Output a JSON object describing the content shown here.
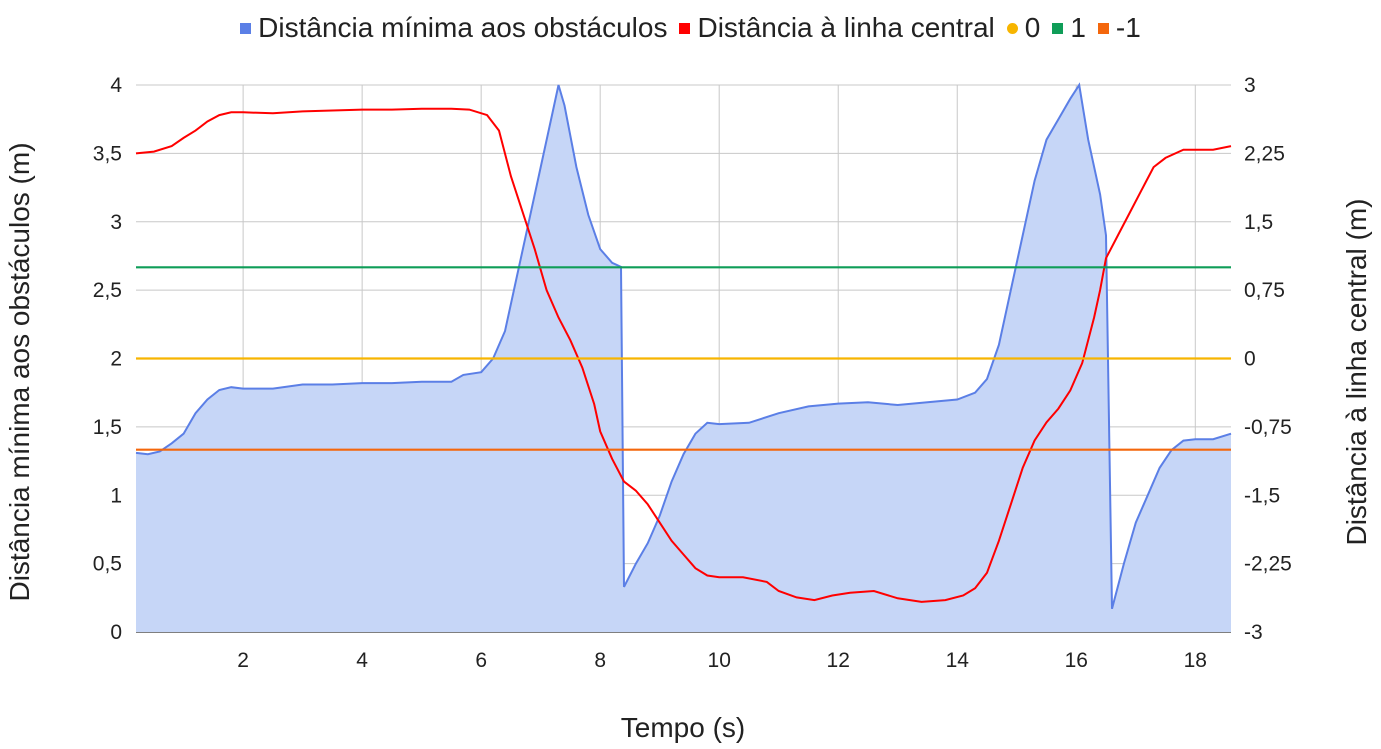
{
  "chart_data": {
    "type": "line",
    "xlabel": "Tempo (s)",
    "ylabel_left": "Distância mínima aos obstáculos (m)",
    "ylabel_right": "Distância à linha central (m)",
    "xlim": [
      0.2,
      18.6
    ],
    "ylim_left": [
      0,
      4
    ],
    "ylim_right": [
      -3,
      3
    ],
    "x_ticks": [
      "2",
      "4",
      "6",
      "8",
      "10",
      "12",
      "14",
      "16",
      "18"
    ],
    "x_tick_values": [
      2,
      4,
      6,
      8,
      10,
      12,
      14,
      16,
      18
    ],
    "y_left_ticks": [
      "0",
      "0,5",
      "1",
      "1,5",
      "2",
      "2,5",
      "3",
      "3,5",
      "4"
    ],
    "y_left_tick_values": [
      0,
      0.5,
      1,
      1.5,
      2,
      2.5,
      3,
      3.5,
      4
    ],
    "y_right_ticks": [
      "-3",
      "-2,25",
      "-1,5",
      "-0,75",
      "0",
      "0,75",
      "1,5",
      "2,25",
      "3"
    ],
    "y_right_tick_values": [
      -3,
      -2.25,
      -1.5,
      -0.75,
      0,
      0.75,
      1.5,
      2.25,
      3
    ],
    "grid": true,
    "legend_position": "top",
    "series": [
      {
        "name": "Distância mínima aos obstáculos",
        "axis": "left",
        "kind": "area",
        "color": "#5b7fe6",
        "fill": "#c6d6f7",
        "points": [
          [
            0.2,
            1.31
          ],
          [
            0.4,
            1.3
          ],
          [
            0.6,
            1.32
          ],
          [
            0.8,
            1.38
          ],
          [
            1.0,
            1.45
          ],
          [
            1.2,
            1.6
          ],
          [
            1.4,
            1.7
          ],
          [
            1.6,
            1.77
          ],
          [
            1.8,
            1.79
          ],
          [
            2.0,
            1.78
          ],
          [
            2.5,
            1.78
          ],
          [
            3.0,
            1.81
          ],
          [
            3.5,
            1.81
          ],
          [
            4.0,
            1.82
          ],
          [
            4.5,
            1.82
          ],
          [
            5.0,
            1.83
          ],
          [
            5.5,
            1.83
          ],
          [
            5.7,
            1.88
          ],
          [
            6.0,
            1.9
          ],
          [
            6.2,
            2.0
          ],
          [
            6.4,
            2.2
          ],
          [
            6.6,
            2.6
          ],
          [
            6.8,
            3.0
          ],
          [
            7.0,
            3.4
          ],
          [
            7.2,
            3.8
          ],
          [
            7.3,
            4.0
          ],
          [
            7.4,
            3.85
          ],
          [
            7.6,
            3.4
          ],
          [
            7.8,
            3.05
          ],
          [
            8.0,
            2.8
          ],
          [
            8.2,
            2.7
          ],
          [
            8.35,
            2.67
          ],
          [
            8.4,
            0.33
          ],
          [
            8.6,
            0.5
          ],
          [
            8.8,
            0.65
          ],
          [
            9.0,
            0.85
          ],
          [
            9.2,
            1.1
          ],
          [
            9.4,
            1.3
          ],
          [
            9.6,
            1.45
          ],
          [
            9.8,
            1.53
          ],
          [
            10.0,
            1.52
          ],
          [
            10.5,
            1.53
          ],
          [
            11.0,
            1.6
          ],
          [
            11.5,
            1.65
          ],
          [
            12.0,
            1.67
          ],
          [
            12.5,
            1.68
          ],
          [
            13.0,
            1.66
          ],
          [
            13.5,
            1.68
          ],
          [
            14.0,
            1.7
          ],
          [
            14.3,
            1.75
          ],
          [
            14.5,
            1.85
          ],
          [
            14.7,
            2.1
          ],
          [
            14.9,
            2.5
          ],
          [
            15.1,
            2.9
          ],
          [
            15.3,
            3.3
          ],
          [
            15.5,
            3.6
          ],
          [
            15.7,
            3.75
          ],
          [
            15.9,
            3.9
          ],
          [
            16.05,
            4.0
          ],
          [
            16.2,
            3.6
          ],
          [
            16.4,
            3.2
          ],
          [
            16.5,
            2.9
          ],
          [
            16.6,
            0.17
          ],
          [
            16.8,
            0.5
          ],
          [
            17.0,
            0.8
          ],
          [
            17.2,
            1.0
          ],
          [
            17.4,
            1.2
          ],
          [
            17.6,
            1.33
          ],
          [
            17.8,
            1.4
          ],
          [
            18.0,
            1.41
          ],
          [
            18.3,
            1.41
          ],
          [
            18.6,
            1.45
          ]
        ]
      },
      {
        "name": "Distância à linha central",
        "axis": "right",
        "kind": "line",
        "color": "#ff0000",
        "points": [
          [
            0.2,
            2.25
          ],
          [
            0.5,
            2.27
          ],
          [
            0.8,
            2.33
          ],
          [
            1.0,
            2.42
          ],
          [
            1.2,
            2.5
          ],
          [
            1.4,
            2.6
          ],
          [
            1.6,
            2.67
          ],
          [
            1.8,
            2.7
          ],
          [
            2.0,
            2.7
          ],
          [
            2.5,
            2.69
          ],
          [
            3.0,
            2.71
          ],
          [
            3.5,
            2.72
          ],
          [
            4.0,
            2.73
          ],
          [
            4.5,
            2.73
          ],
          [
            5.0,
            2.74
          ],
          [
            5.5,
            2.74
          ],
          [
            5.8,
            2.73
          ],
          [
            6.1,
            2.67
          ],
          [
            6.3,
            2.5
          ],
          [
            6.5,
            2.0
          ],
          [
            6.7,
            1.6
          ],
          [
            6.9,
            1.2
          ],
          [
            7.1,
            0.75
          ],
          [
            7.3,
            0.45
          ],
          [
            7.5,
            0.2
          ],
          [
            7.7,
            -0.1
          ],
          [
            7.9,
            -0.5
          ],
          [
            8.0,
            -0.8
          ],
          [
            8.2,
            -1.1
          ],
          [
            8.4,
            -1.35
          ],
          [
            8.6,
            -1.45
          ],
          [
            8.8,
            -1.6
          ],
          [
            9.0,
            -1.8
          ],
          [
            9.2,
            -2.0
          ],
          [
            9.4,
            -2.15
          ],
          [
            9.6,
            -2.3
          ],
          [
            9.8,
            -2.38
          ],
          [
            10.0,
            -2.4
          ],
          [
            10.4,
            -2.4
          ],
          [
            10.8,
            -2.45
          ],
          [
            11.0,
            -2.55
          ],
          [
            11.3,
            -2.62
          ],
          [
            11.6,
            -2.65
          ],
          [
            11.9,
            -2.6
          ],
          [
            12.2,
            -2.57
          ],
          [
            12.6,
            -2.55
          ],
          [
            13.0,
            -2.63
          ],
          [
            13.4,
            -2.67
          ],
          [
            13.8,
            -2.65
          ],
          [
            14.1,
            -2.6
          ],
          [
            14.3,
            -2.52
          ],
          [
            14.5,
            -2.35
          ],
          [
            14.7,
            -2.0
          ],
          [
            14.9,
            -1.6
          ],
          [
            15.1,
            -1.2
          ],
          [
            15.3,
            -0.9
          ],
          [
            15.5,
            -0.7
          ],
          [
            15.7,
            -0.55
          ],
          [
            15.9,
            -0.35
          ],
          [
            16.1,
            -0.05
          ],
          [
            16.3,
            0.45
          ],
          [
            16.4,
            0.75
          ],
          [
            16.5,
            1.1
          ],
          [
            16.7,
            1.35
          ],
          [
            16.9,
            1.6
          ],
          [
            17.1,
            1.85
          ],
          [
            17.3,
            2.1
          ],
          [
            17.5,
            2.2
          ],
          [
            17.8,
            2.29
          ],
          [
            18.0,
            2.29
          ],
          [
            18.3,
            2.29
          ],
          [
            18.6,
            2.33
          ]
        ]
      },
      {
        "name": "0",
        "axis": "right",
        "kind": "hline",
        "color": "#f7b500",
        "value": 0
      },
      {
        "name": "1",
        "axis": "right",
        "kind": "hline",
        "color": "#0f9d58",
        "value": 1
      },
      {
        "name": "-1",
        "axis": "right",
        "kind": "hline",
        "color": "#f4670c",
        "value": -1
      }
    ]
  }
}
